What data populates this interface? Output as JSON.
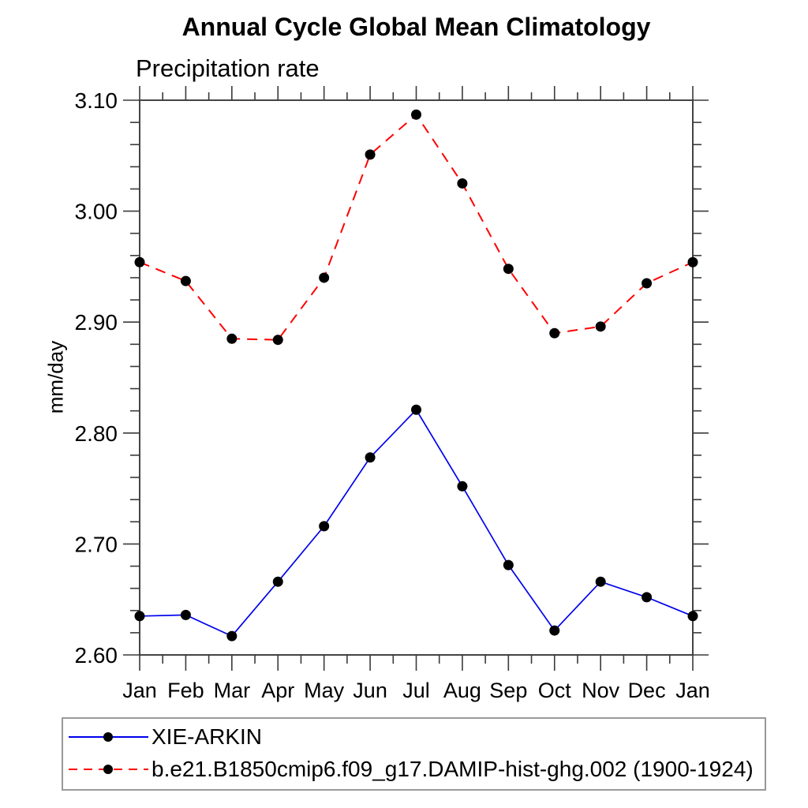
{
  "chart_data": {
    "type": "line",
    "title": "Annual Cycle Global Mean Climatology",
    "subtitle": "Precipitation rate",
    "ylabel": "mm/day",
    "xlabel": "",
    "categories": [
      "Jan",
      "Feb",
      "Mar",
      "Apr",
      "May",
      "Jun",
      "Jul",
      "Aug",
      "Sep",
      "Oct",
      "Nov",
      "Dec",
      "Jan"
    ],
    "series": [
      {
        "name": "XIE-ARKIN",
        "color": "#0000ee",
        "style": "solid",
        "values": [
          2.635,
          2.636,
          2.617,
          2.666,
          2.716,
          2.778,
          2.821,
          2.752,
          2.681,
          2.622,
          2.666,
          2.652,
          2.635
        ]
      },
      {
        "name": "b.e21.B1850cmip6.f09_g17.DAMIP-hist-ghg.002 (1900-1924)",
        "color": "#ff0000",
        "style": "dashed",
        "values": [
          2.954,
          2.937,
          2.885,
          2.884,
          2.94,
          3.051,
          3.087,
          3.025,
          2.948,
          2.89,
          2.896,
          2.935,
          2.954
        ]
      }
    ],
    "ylim": [
      2.6,
      3.1
    ],
    "yticks_major": [
      2.6,
      2.7,
      2.8,
      2.9,
      3.0,
      3.1
    ],
    "ytick_labels": [
      "2.60",
      "2.70",
      "2.80",
      "2.90",
      "3.00",
      "3.10"
    ],
    "y_minor_step": 0.02,
    "x_minor_step": 0.5,
    "marker_color": "#000000",
    "grid": "off",
    "legend_position": "bottom-left",
    "tick_direction": "out"
  },
  "colors": {
    "frame": "#444444",
    "tick": "#3a3a3a",
    "legend_border": "#999999"
  }
}
